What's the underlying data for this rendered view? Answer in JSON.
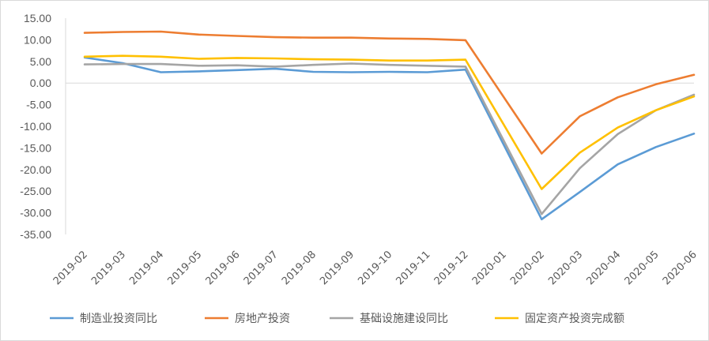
{
  "chart_data": {
    "type": "line",
    "title": "",
    "xlabel": "",
    "ylabel": "",
    "categories": [
      "2019-02",
      "2019-03",
      "2019-04",
      "2019-05",
      "2019-06",
      "2019-07",
      "2019-08",
      "2019-09",
      "2019-10",
      "2019-11",
      "2019-12",
      "2020-01",
      "2020-02",
      "2020-03",
      "2020-04",
      "2020-05",
      "2020-06"
    ],
    "ylim": [
      -35,
      15
    ],
    "yticks": [
      "15.00",
      "10.00",
      "5.00",
      "0.00",
      "-5.00",
      "-10.00",
      "-15.00",
      "-20.00",
      "-25.00",
      "-30.00",
      "-35.00"
    ],
    "ytick_values": [
      15,
      10,
      5,
      0,
      -5,
      -10,
      -15,
      -20,
      -25,
      -30,
      -35
    ],
    "grid": false,
    "legend_position": "bottom",
    "series": [
      {
        "name": "制造业投资同比",
        "color": "#5B9BD5",
        "values": [
          5.9,
          4.6,
          2.5,
          2.7,
          3.0,
          3.3,
          2.6,
          2.5,
          2.6,
          2.5,
          3.1,
          null,
          -31.5,
          -25.2,
          -18.8,
          -14.8,
          -11.7
        ]
      },
      {
        "name": "房地产投资",
        "color": "#ED7D31",
        "values": [
          11.6,
          11.8,
          11.9,
          11.2,
          10.9,
          10.6,
          10.5,
          10.5,
          10.3,
          10.2,
          9.9,
          null,
          -16.3,
          -7.7,
          -3.3,
          -0.3,
          1.9
        ]
      },
      {
        "name": "基础设施建设同比",
        "color": "#A5A5A5",
        "values": [
          4.3,
          4.4,
          4.4,
          4.0,
          4.1,
          3.8,
          4.2,
          4.5,
          4.2,
          4.0,
          3.8,
          null,
          -30.3,
          -19.7,
          -11.8,
          -6.3,
          -2.7
        ]
      },
      {
        "name": "固定资产投资完成额",
        "color": "#FFC000",
        "values": [
          6.1,
          6.3,
          6.1,
          5.6,
          5.8,
          5.7,
          5.5,
          5.4,
          5.2,
          5.2,
          5.4,
          null,
          -24.5,
          -16.1,
          -10.3,
          -6.3,
          -3.1
        ]
      }
    ]
  }
}
